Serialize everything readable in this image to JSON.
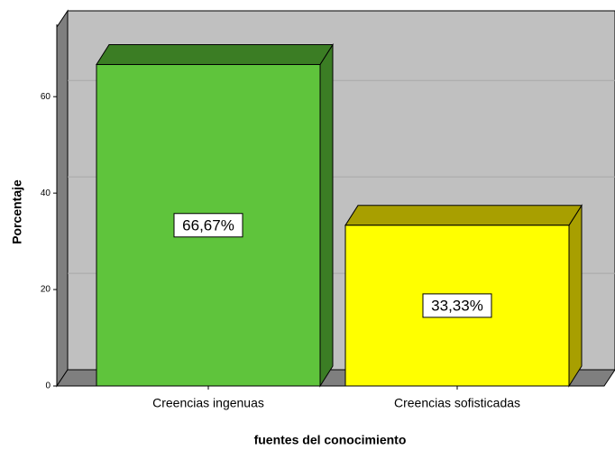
{
  "chart_data": {
    "type": "bar3d",
    "categories": [
      "Creencias ingenuas",
      "Creencias sofisticadas"
    ],
    "values": [
      66.67,
      33.33
    ],
    "value_labels": [
      "66,67%",
      "33,33%"
    ],
    "colors": [
      "#5fc43c",
      "#ffff00"
    ],
    "side_colors": [
      "#3b7d24",
      "#a89f00"
    ],
    "xlabel": "fuentes del conocimiento",
    "ylabel": "Porcentaje",
    "ylim": [
      0,
      75
    ],
    "yticks": [
      0,
      20,
      40,
      60
    ],
    "grid": true
  }
}
